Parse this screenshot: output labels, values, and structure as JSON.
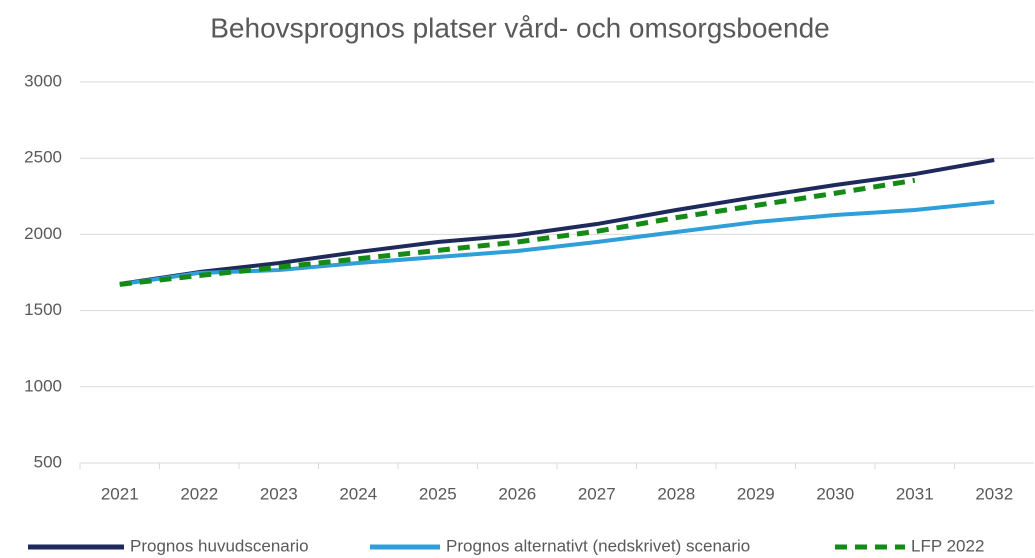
{
  "chart_data": {
    "type": "line",
    "title": "Behovsprognos platser vård- och omsorgsboende",
    "categories": [
      "2021",
      "2022",
      "2023",
      "2024",
      "2025",
      "2026",
      "2027",
      "2028",
      "2029",
      "2030",
      "2031",
      "2032"
    ],
    "series": [
      {
        "name": "Prognos huvudscenario",
        "color": "#1f2a5c",
        "dash": false,
        "values": [
          1675,
          1753,
          1812,
          1885,
          1950,
          1995,
          2068,
          2160,
          2245,
          2324,
          2396,
          2488
        ]
      },
      {
        "name": "Prognos alternativt (nedskrivet) scenario",
        "color": "#2e9fd9",
        "dash": false,
        "values": [
          1672,
          1747,
          1766,
          1812,
          1852,
          1891,
          1950,
          2016,
          2081,
          2127,
          2160,
          2213
        ]
      },
      {
        "name": "LFP 2022",
        "color": "#168a16",
        "dash": true,
        "values": [
          1672,
          1730,
          1785,
          1840,
          1895,
          1950,
          2020,
          2110,
          2190,
          2270,
          2355,
          null
        ]
      }
    ],
    "ylim": [
      500,
      3000
    ],
    "yticks": [
      500,
      1000,
      1500,
      2000,
      2500,
      3000
    ],
    "grid": true,
    "legend": "bottom"
  }
}
